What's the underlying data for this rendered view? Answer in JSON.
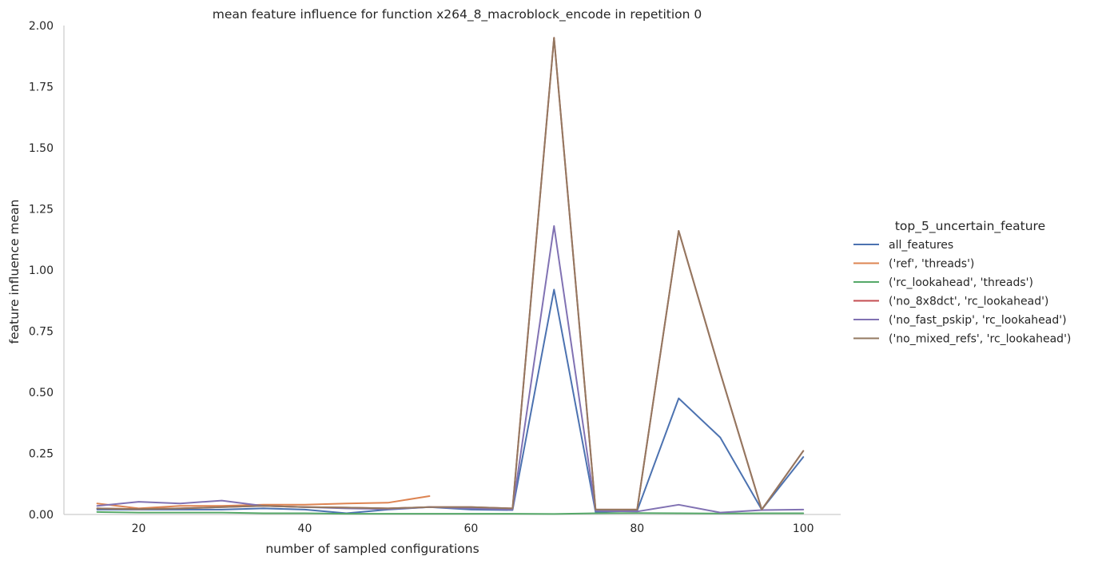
{
  "chart_data": {
    "type": "line",
    "title": "mean feature influence for function x264_8_macroblock_encode in repetition 0",
    "xlabel": "number of sampled configurations",
    "ylabel": "feature influence mean",
    "xlim": [
      11,
      104.5
    ],
    "ylim": [
      0,
      2.0
    ],
    "xticks": [
      20,
      40,
      60,
      80,
      100
    ],
    "yticks": [
      "0.00",
      "0.25",
      "0.50",
      "0.75",
      "1.00",
      "1.25",
      "1.50",
      "1.75",
      "2.00"
    ],
    "grid": false,
    "legend": {
      "title": "top_5_uncertain_feature",
      "placement": "right"
    },
    "series": [
      {
        "name": "all_features",
        "color": "#4c72b0",
        "x": [
          15,
          20,
          25,
          30,
          35,
          40,
          45,
          50,
          55,
          60,
          65,
          70,
          75,
          80,
          85,
          90,
          95,
          100
        ],
        "y": [
          0.02,
          0.02,
          0.02,
          0.02,
          0.025,
          0.02,
          0.005,
          0.02,
          0.03,
          0.02,
          0.018,
          0.92,
          0.01,
          0.015,
          0.475,
          0.315,
          0.02,
          0.235
        ]
      },
      {
        "name": "('ref', 'threads')",
        "color": "#dd8452",
        "x": [
          15,
          20,
          25,
          30,
          35,
          40,
          45,
          50,
          55
        ],
        "y": [
          0.045,
          0.025,
          0.035,
          0.035,
          0.04,
          0.04,
          0.045,
          0.048,
          0.075
        ]
      },
      {
        "name": "('rc_lookahead', 'threads')",
        "color": "#55a868",
        "x": [
          15,
          20,
          25,
          30,
          35,
          40,
          45,
          50,
          55,
          60,
          65,
          70,
          75,
          80,
          85,
          90,
          95,
          100
        ],
        "y": [
          0.01,
          0.008,
          0.008,
          0.008,
          0.005,
          0.005,
          0.003,
          0.003,
          0.003,
          0.003,
          0.003,
          0.002,
          0.005,
          0.006,
          0.005,
          0.004,
          0.005,
          0.005
        ]
      },
      {
        "name": "('no_8x8dct', 'rc_lookahead')",
        "color": "#c44e52",
        "x": [
          15,
          20,
          25,
          30,
          35,
          40,
          45,
          50,
          55,
          60,
          65,
          70,
          75,
          80,
          85,
          90,
          95,
          100
        ],
        "y": [
          0.025,
          0.022,
          0.025,
          0.03,
          0.035,
          0.03,
          0.028,
          0.025,
          0.03,
          0.03,
          0.025,
          1.95,
          0.02,
          0.02,
          1.16,
          0.58,
          0.02,
          0.26
        ]
      },
      {
        "name": "('no_fast_pskip', 'rc_lookahead')",
        "color": "#8172b3",
        "x": [
          15,
          20,
          25,
          30,
          35,
          40,
          45,
          50,
          55,
          60,
          65,
          70,
          75,
          80,
          85,
          90,
          95,
          100
        ],
        "y": [
          0.035,
          0.052,
          0.045,
          0.057,
          0.035,
          0.03,
          0.025,
          0.022,
          0.03,
          0.025,
          0.02,
          1.18,
          0.015,
          0.012,
          0.04,
          0.008,
          0.018,
          0.02
        ]
      },
      {
        "name": "('no_mixed_refs', 'rc_lookahead')",
        "color": "#937860",
        "x": [
          15,
          20,
          25,
          30,
          35,
          40,
          45,
          50,
          55,
          60,
          65,
          70,
          75,
          80,
          85,
          90,
          95,
          100
        ],
        "y": [
          0.025,
          0.022,
          0.025,
          0.03,
          0.035,
          0.03,
          0.028,
          0.025,
          0.03,
          0.03,
          0.025,
          1.95,
          0.02,
          0.02,
          1.16,
          0.58,
          0.02,
          0.26
        ]
      }
    ]
  }
}
